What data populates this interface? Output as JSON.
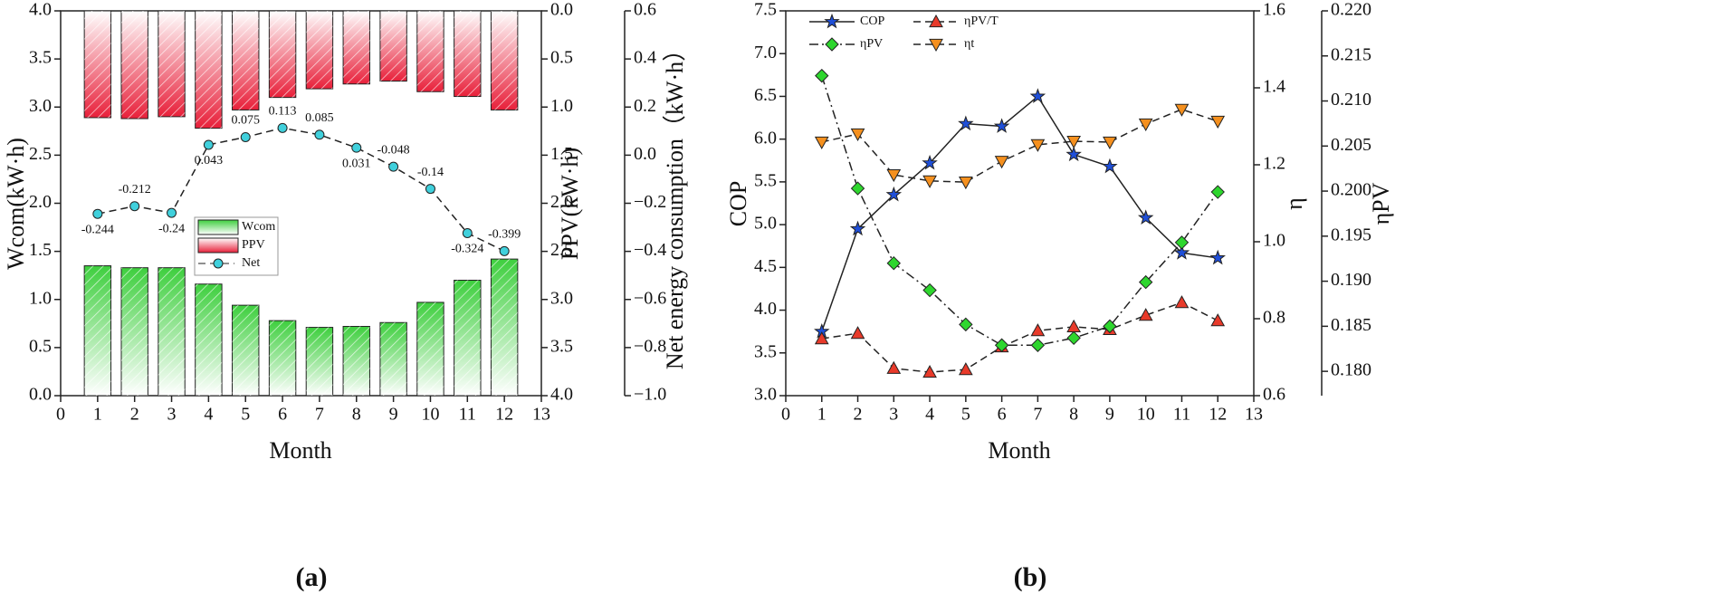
{
  "chart_data": [
    {
      "type": "bar",
      "title": "(a)",
      "xlabel": "Month",
      "ylabel": "Wcom(kW·h)",
      "y2label": "PPV(kW·h)",
      "y3label": "Net energy consumption（kW·h）",
      "x": [
        1,
        2,
        3,
        4,
        5,
        6,
        7,
        8,
        9,
        10,
        11,
        12
      ],
      "xlim": [
        0,
        13
      ],
      "xticks": [
        0,
        1,
        2,
        3,
        4,
        5,
        6,
        7,
        8,
        9,
        10,
        11,
        12,
        13
      ],
      "ylim": [
        0,
        4
      ],
      "yticks": [
        {
          "value": 0,
          "label": "0.0"
        },
        0.5,
        {
          "value": 1,
          "label": "1.0"
        },
        1.5,
        {
          "value": 2,
          "label": "2.0"
        },
        2.5,
        {
          "value": 3,
          "label": "3.0"
        },
        3.5,
        {
          "value": 4,
          "label": "4.0"
        }
      ],
      "y2lim": [
        0,
        4
      ],
      "y2_inverted": true,
      "y2ticks": [
        {
          "value": 0,
          "label": "0.0"
        },
        0.5,
        {
          "value": 1,
          "label": "1.0"
        },
        1.5,
        {
          "value": 2,
          "label": "2.0"
        },
        2.5,
        {
          "value": 3,
          "label": "3.0"
        },
        3.5,
        {
          "value": 4,
          "label": "4.0"
        }
      ],
      "y3lim": [
        -1,
        0.6
      ],
      "y3ticks": [
        {
          "value": -1,
          "label": "−1.0"
        },
        {
          "value": -0.8,
          "label": "−0.8"
        },
        {
          "value": -0.6,
          "label": "−0.6"
        },
        {
          "value": -0.4,
          "label": "−0.4"
        },
        {
          "value": -0.2,
          "label": "−0.2"
        },
        {
          "value": 0,
          "label": "0.0"
        },
        0.2,
        0.4,
        0.6
      ],
      "series": [
        {
          "name": "Wcom",
          "kind": "bar",
          "color": "#3ecf3e",
          "values": [
            1.35,
            1.33,
            1.33,
            1.16,
            0.94,
            0.78,
            0.71,
            0.72,
            0.76,
            0.97,
            1.2,
            1.42
          ]
        },
        {
          "name": "PPV",
          "kind": "bar",
          "axis": "y2",
          "color": "#e8203a",
          "values": [
            1.11,
            1.12,
            1.1,
            1.22,
            1.03,
            0.9,
            0.81,
            0.76,
            0.73,
            0.84,
            0.89,
            1.03
          ]
        },
        {
          "name": "Net",
          "kind": "line",
          "axis": "y3",
          "color": "#40d0dc",
          "marker": "circle",
          "line_style": "dashed",
          "values": [
            -0.244,
            -0.212,
            -0.24,
            0.043,
            0.075,
            0.113,
            0.085,
            0.031,
            -0.048,
            -0.14,
            -0.324,
            -0.399
          ]
        }
      ]
    },
    {
      "type": "line",
      "title": "(b)",
      "xlabel": "Month",
      "ylabel": "COP",
      "y2label": "η",
      "y3label": "ηPV",
      "x": [
        1,
        2,
        3,
        4,
        5,
        6,
        7,
        8,
        9,
        10,
        11,
        12
      ],
      "xlim": [
        0,
        13
      ],
      "xticks": [
        0,
        1,
        2,
        3,
        4,
        5,
        6,
        7,
        8,
        9,
        10,
        11,
        12,
        13
      ],
      "ylim": [
        3,
        7.5
      ],
      "yticks": [
        {
          "value": 3,
          "label": "3.0"
        },
        3.5,
        {
          "value": 4,
          "label": "4.0"
        },
        4.5,
        {
          "value": 5,
          "label": "5.0"
        },
        5.5,
        {
          "value": 6,
          "label": "6.0"
        },
        6.5,
        {
          "value": 7,
          "label": "7.0"
        },
        7.5
      ],
      "y2lim": [
        0.6,
        1.6
      ],
      "y2ticks": [
        0.6,
        0.8,
        {
          "value": 1,
          "label": "1.0"
        },
        1.2,
        1.4,
        1.6
      ],
      "y3lim": [
        0.1773,
        0.22
      ],
      "y3ticks": [
        {
          "value": 0.18,
          "label": "0.180"
        },
        0.185,
        {
          "value": 0.19,
          "label": "0.190"
        },
        0.195,
        {
          "value": 0.2,
          "label": "0.200"
        },
        0.205,
        {
          "value": 0.21,
          "label": "0.210"
        },
        0.215,
        {
          "value": 0.22,
          "label": "0.220"
        }
      ],
      "series": [
        {
          "name": "COP",
          "kind": "line",
          "color": "#1f4fd8",
          "marker": "star",
          "line_style": "solid",
          "values": [
            3.75,
            4.95,
            5.35,
            5.72,
            6.18,
            6.15,
            6.5,
            5.82,
            5.68,
            5.08,
            4.67,
            4.61
          ]
        },
        {
          "name": "ηPV/T",
          "kind": "line",
          "axis": "y2",
          "color": "#e83a2a",
          "marker": "triangle-up",
          "line_style": "dashed",
          "values": [
            0.748,
            0.762,
            0.671,
            0.661,
            0.668,
            0.727,
            0.769,
            0.779,
            0.772,
            0.809,
            0.842,
            0.795
          ]
        },
        {
          "name": "ηPV",
          "kind": "line",
          "axis": "y3",
          "color": "#2ed62e",
          "marker": "diamond",
          "line_style": "dashdot",
          "values": [
            0.2128,
            0.2003,
            0.192,
            0.189,
            0.1852,
            0.1829,
            0.1829,
            0.1837,
            0.185,
            0.1899,
            0.1943,
            0.1999
          ]
        },
        {
          "name": "ηt",
          "kind": "line",
          "axis": "y2",
          "color": "#f5901e",
          "marker": "triangle-down",
          "line_style": "dashed",
          "values": [
            1.259,
            1.28,
            1.174,
            1.158,
            1.155,
            1.209,
            1.252,
            1.261,
            1.259,
            1.306,
            1.344,
            1.313
          ]
        }
      ]
    }
  ]
}
